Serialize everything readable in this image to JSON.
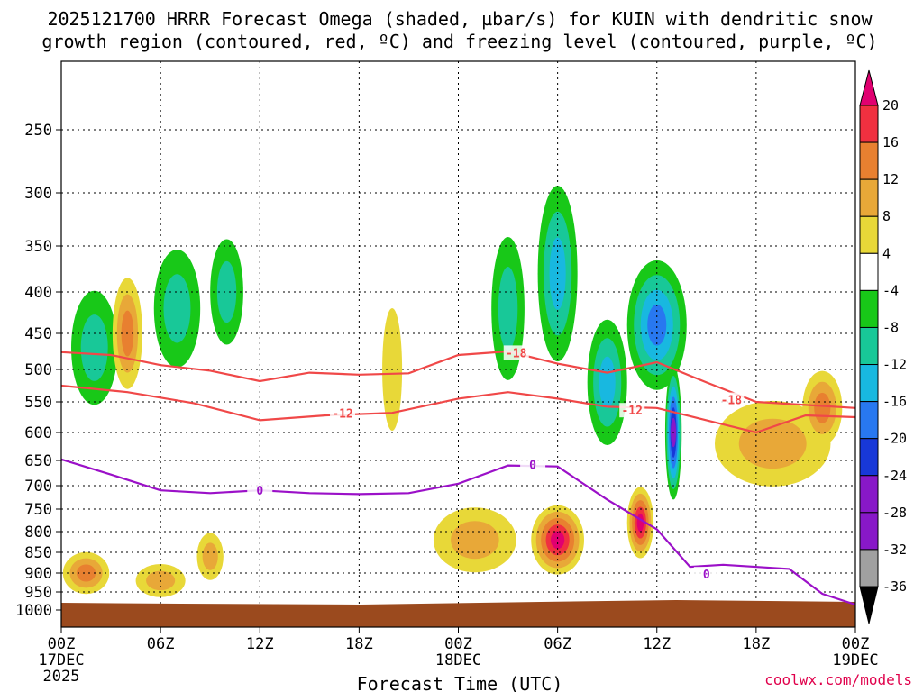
{
  "chart_data": {
    "type": "time-height cross-section",
    "title_line1": "2025121700 HRRR Forecast Omega (shaded, µbar/s) for KUIN with dendritic snow",
    "title_line2": "growth region (contoured, red, ºC) and freezing level (contoured, purple, ºC)",
    "xlabel": "Forecast Time (UTC)",
    "credit": "coolwx.com/models",
    "x_range_hours": [
      0,
      48
    ],
    "y_range_hpa": [
      1000,
      200
    ],
    "x_ticks": [
      {
        "hour": 0,
        "label": "00Z",
        "date": "17DEC",
        "year": "2025"
      },
      {
        "hour": 6,
        "label": "06Z"
      },
      {
        "hour": 12,
        "label": "12Z"
      },
      {
        "hour": 18,
        "label": "18Z"
      },
      {
        "hour": 24,
        "label": "00Z",
        "date": "18DEC"
      },
      {
        "hour": 30,
        "label": "06Z"
      },
      {
        "hour": 36,
        "label": "12Z"
      },
      {
        "hour": 42,
        "label": "18Z"
      },
      {
        "hour": 48,
        "label": "00Z",
        "date": "19DEC"
      }
    ],
    "y_ticks": [
      250,
      300,
      350,
      400,
      450,
      500,
      550,
      600,
      650,
      700,
      750,
      800,
      850,
      900,
      950,
      1000
    ],
    "colorbar": {
      "levels": [
        -36,
        -32,
        -28,
        -24,
        -20,
        -16,
        -12,
        -8,
        -4,
        4,
        8,
        12,
        16,
        20
      ],
      "labels": [
        "20",
        "16",
        "12",
        "8",
        "4",
        "-4",
        "-8",
        "-12",
        "-16",
        "-20",
        "-24",
        "-28",
        "-32",
        "-36"
      ],
      "colors": {
        "ext_high": "#e00070",
        "c16_20": "#f03040",
        "c12_16": "#e88030",
        "c8_12": "#e8a838",
        "c4_8": "#e8d838",
        "c_4_4": "#ffffff",
        "c_8_4": "#18c818",
        "c_12_8": "#18c898",
        "c_16_12": "#18b8e0",
        "c_20_16": "#2878f0",
        "c_24_20": "#1838d8",
        "c_28_24": "#8818c8",
        "c_32_28": "#8818c8",
        "c_36_32": "#a0a0a0",
        "ext_low": "#000000"
      }
    },
    "contours": {
      "red_dendritic_label_minus18": "-18",
      "red_dendritic_label_minus12": "-12",
      "purple_freezing_label": "0",
      "minus18_hpa": [
        [
          0,
          476
        ],
        [
          3,
          480
        ],
        [
          6,
          494
        ],
        [
          9,
          502
        ],
        [
          12,
          518
        ],
        [
          15,
          505
        ],
        [
          18,
          508
        ],
        [
          21,
          506
        ],
        [
          24,
          480
        ],
        [
          27,
          475
        ],
        [
          30,
          492
        ],
        [
          33,
          505
        ],
        [
          36,
          490
        ],
        [
          39,
          520
        ],
        [
          42,
          550
        ],
        [
          45,
          555
        ],
        [
          48,
          560
        ]
      ],
      "minus12_hpa": [
        [
          0,
          525
        ],
        [
          4,
          535
        ],
        [
          8,
          552
        ],
        [
          12,
          580
        ],
        [
          16,
          572
        ],
        [
          20,
          568
        ],
        [
          24,
          545
        ],
        [
          27,
          535
        ],
        [
          30,
          545
        ],
        [
          33,
          558
        ],
        [
          36,
          560
        ],
        [
          39,
          580
        ],
        [
          42,
          600
        ],
        [
          45,
          572
        ],
        [
          48,
          575
        ]
      ],
      "freezing_hpa": [
        [
          0,
          648
        ],
        [
          3,
          678
        ],
        [
          6,
          710
        ],
        [
          9,
          716
        ],
        [
          12,
          710
        ],
        [
          15,
          716
        ],
        [
          18,
          718
        ],
        [
          21,
          716
        ],
        [
          24,
          696
        ],
        [
          27,
          660
        ],
        [
          30,
          662
        ],
        [
          33,
          730
        ],
        [
          36,
          795
        ],
        [
          38,
          885
        ],
        [
          40,
          880
        ],
        [
          44,
          890
        ],
        [
          46,
          955
        ],
        [
          48,
          985
        ]
      ]
    },
    "omega_cells": [
      {
        "name": "early-ascent-col-a",
        "t": 2,
        "p": 470,
        "dt": 1.4,
        "dp": 130,
        "v": -10
      },
      {
        "name": "early-descent-col",
        "t": 4,
        "p": 450,
        "dt": 0.9,
        "dp": 120,
        "v": 14
      },
      {
        "name": "ascent-col-b",
        "t": 7,
        "p": 420,
        "dt": 1.4,
        "dp": 120,
        "v": -9
      },
      {
        "name": "ascent-col-c",
        "t": 10,
        "p": 400,
        "dt": 1.0,
        "dp": 100,
        "v": -10
      },
      {
        "name": "low-level-descent-early",
        "t": 1.5,
        "p": 900,
        "dt": 1.4,
        "dp": 60,
        "v": 12
      },
      {
        "name": "low-level-descent-6z",
        "t": 6,
        "p": 920,
        "dt": 1.5,
        "dp": 40,
        "v": 8
      },
      {
        "name": "low-level-descent-9z",
        "t": 9,
        "p": 860,
        "dt": 0.8,
        "dp": 70,
        "v": 10
      },
      {
        "name": "midlevel-descent-20z",
        "t": 20,
        "p": 500,
        "dt": 0.6,
        "dp": 150,
        "v": 6
      },
      {
        "name": "descent-00z-18dec",
        "t": 25,
        "p": 820,
        "dt": 2.5,
        "dp": 110,
        "v": 10
      },
      {
        "name": "strong-descent-06z",
        "t": 30,
        "p": 820,
        "dt": 1.6,
        "dp": 120,
        "v": 22
      },
      {
        "name": "ascent-col-18dec-03z",
        "t": 27,
        "p": 420,
        "dt": 1.0,
        "dp": 150,
        "v": -10
      },
      {
        "name": "ascent-col-18dec-05z",
        "t": 30,
        "p": 380,
        "dt": 1.2,
        "dp": 170,
        "v": -12
      },
      {
        "name": "ascent-col-18dec-09z",
        "t": 33,
        "p": 520,
        "dt": 1.2,
        "dp": 160,
        "v": -14
      },
      {
        "name": "ascent-col-18dec-12z",
        "t": 36,
        "p": 440,
        "dt": 1.8,
        "dp": 140,
        "v": -18
      },
      {
        "name": "strong-ascent-13z",
        "t": 37,
        "p": 600,
        "dt": 0.5,
        "dp": 200,
        "v": -24
      },
      {
        "name": "strong-descent-11z",
        "t": 35,
        "p": 780,
        "dt": 0.8,
        "dp": 120,
        "v": 22
      },
      {
        "name": "descent-plateau-18z",
        "t": 43,
        "p": 620,
        "dt": 3.5,
        "dp": 120,
        "v": 10
      },
      {
        "name": "descent-late-22z",
        "t": 46,
        "p": 560,
        "dt": 1.2,
        "dp": 90,
        "v": 14
      }
    ]
  }
}
